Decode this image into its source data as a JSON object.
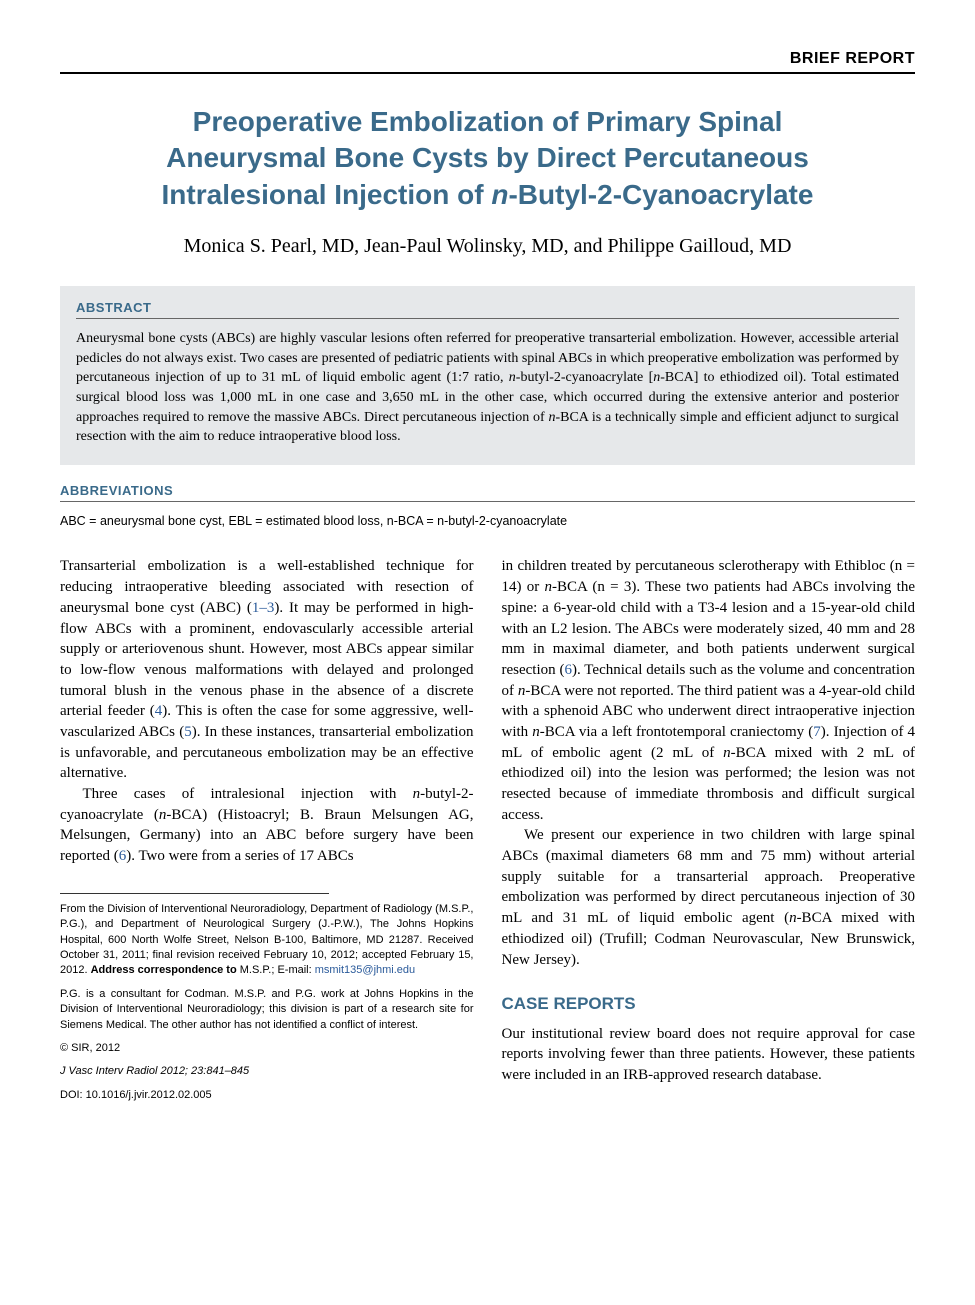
{
  "colors": {
    "heading_blue": "#3a6a8a",
    "link_blue": "#2a5a9a",
    "abstract_bg": "#e6e8ea",
    "text": "#000000",
    "page_bg": "#ffffff",
    "rule": "#333333"
  },
  "fonts": {
    "sans": "Arial, Helvetica, sans-serif",
    "serif": "Times New Roman, Times, serif",
    "title_size_pt": 28,
    "authors_size_pt": 20,
    "body_size_pt": 15,
    "abstract_size_pt": 14,
    "footnote_size_pt": 11,
    "abbrev_size_pt": 12.5
  },
  "category": "BRIEF REPORT",
  "title_line1": "Preoperative Embolization of Primary Spinal",
  "title_line2": "Aneurysmal Bone Cysts by Direct Percutaneous",
  "title_line3": "Intralesional Injection of ",
  "title_line3_ital": "n",
  "title_line3_rest": "-Butyl-2-Cyanoacrylate",
  "authors": "Monica S. Pearl, MD, Jean-Paul Wolinsky, MD, and Philippe Gailloud, MD",
  "abstract_label": "ABSTRACT",
  "abstract_text_1": "Aneurysmal bone cysts (ABCs) are highly vascular lesions often referred for preoperative transarterial embolization. However, accessible arterial pedicles do not always exist. Two cases are presented of pediatric patients with spinal ABCs in which preoperative embolization was performed by percutaneous injection of up to 31 mL of liquid embolic agent (1:7 ratio, ",
  "abstract_text_ital1": "n",
  "abstract_text_2": "-butyl-2-cyanoacrylate [",
  "abstract_text_ital2": "n",
  "abstract_text_3": "-BCA] to ethiodized oil). Total estimated surgical blood loss was 1,000 mL in one case and 3,650 mL in the other case, which occurred during the extensive anterior and posterior approaches required to remove the massive ABCs. Direct percutaneous injection of ",
  "abstract_text_ital3": "n",
  "abstract_text_4": "-BCA is a technically simple and efficient adjunct to surgical resection with the aim to reduce intraoperative blood loss.",
  "abbrev_label": "ABBREVIATIONS",
  "abbrev_text": "ABC = aneurysmal bone cyst,  EBL = estimated blood loss,  n-BCA = n-butyl-2-cyanoacrylate",
  "body": {
    "left": {
      "p1_a": "Transarterial embolization is a well-established technique for reducing intraoperative bleeding associated with resection of aneurysmal bone cyst (ABC) (",
      "p1_ref1": "1–3",
      "p1_b": "). It may be performed in high-flow ABCs with a prominent, endovascularly accessible arterial supply or arteriovenous shunt. However, most ABCs appear similar to low-flow venous malformations with delayed and prolonged tumoral blush in the venous phase in the absence of a discrete arterial feeder (",
      "p1_ref2": "4",
      "p1_c": "). This is often the case for some aggressive, well-vascularized ABCs (",
      "p1_ref3": "5",
      "p1_d": "). In these instances, transarterial embolization is unfavorable, and percutaneous embolization may be an effective alternative.",
      "p2_a": "Three cases of intralesional injection with ",
      "p2_ital1": "n",
      "p2_b": "-butyl-2-cyanoacrylate (",
      "p2_ital2": "n",
      "p2_c": "-BCA) (Histoacryl; B. Braun Melsungen AG, Melsungen, Germany) into an ABC before surgery have been reported (",
      "p2_ref1": "6",
      "p2_d": "). Two were from a series of 17 ABCs"
    },
    "right": {
      "p1_a": "in children treated by percutaneous sclerotherapy with Ethibloc (n = 14) or ",
      "p1_ital1": "n",
      "p1_b": "-BCA (n = 3). These two patients had ABCs involving the spine: a 6-year-old child with a T3-4 lesion and a 15-year-old child with an L2 lesion. The ABCs were moderately sized, 40 mm and 28 mm in maximal diameter, and both patients underwent surgical resection (",
      "p1_ref1": "6",
      "p1_c": "). Technical details such as the volume and concentration of ",
      "p1_ital2": "n",
      "p1_d": "-BCA were not reported. The third patient was a 4-year-old child with a sphenoid ABC who underwent direct intraoperative injection with ",
      "p1_ital3": "n",
      "p1_e": "-BCA via a left frontotemporal craniectomy (",
      "p1_ref2": "7",
      "p1_f": "). Injection of 4 mL of embolic agent (2 mL of ",
      "p1_ital4": "n",
      "p1_g": "-BCA mixed with 2 mL of ethiodized oil) into the lesion was performed; the lesion was not resected because of immediate thrombosis and difficult surgical access.",
      "p2_a": "We present our experience in two children with large spinal ABCs (maximal diameters 68 mm and 75 mm) without arterial supply suitable for a transarterial approach. Preoperative embolization was performed by direct percutaneous injection of 30 mL and 31 mL of liquid embolic agent (",
      "p2_ital1": "n",
      "p2_b": "-BCA mixed with ethiodized oil) (Trufill; Codman Neurovascular, New Brunswick, New Jersey)."
    }
  },
  "case_heading": "CASE REPORTS",
  "case_text": "Our institutional review board does not require approval for case reports involving fewer than three patients. However, these patients were included in an IRB-approved research database.",
  "footnotes": {
    "f1_a": "From the Division of Interventional Neuroradiology, Department of Radiology (M.S.P., P.G.), and Department of Neurological Surgery (J.-P.W.), The Johns Hopkins Hospital, 600 North Wolfe Street, Nelson B-100, Baltimore, MD 21287. Received October 31, 2011; final revision received February 10, 2012; accepted February 15, 2012. ",
    "f1_bold": "Address correspondence to",
    "f1_b": " M.S.P.; E-mail: ",
    "f1_email": "msmit135@jhmi.edu",
    "f2": "P.G. is a consultant for Codman. M.S.P. and P.G. work at Johns Hopkins in the Division of Interventional Neuroradiology; this division is part of a research site for Siemens Medical. The other author has not identified a conflict of interest.",
    "f3": "© SIR, 2012",
    "f4": "J Vasc Interv Radiol 2012; 23:841–845",
    "f5": "DOI: 10.1016/j.jvir.2012.02.005"
  }
}
